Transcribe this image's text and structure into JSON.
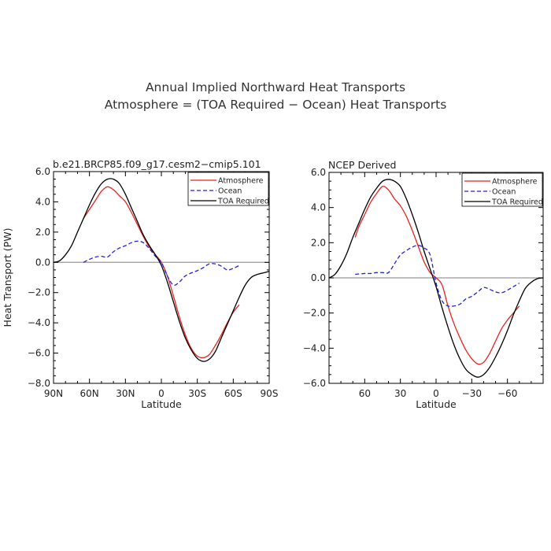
{
  "figure": {
    "title_line1": "Annual Implied Northward Heat Transports",
    "title_line2": "Atmosphere = (TOA Required − Ocean) Heat Transports"
  },
  "chart_data": [
    {
      "type": "line",
      "title": "b.e21.BRCP85.f09_g17.cesm2−cmip5.101",
      "xlabel": "Latitude",
      "ylabel": "Heat Transport (PW)",
      "xlim": [
        90,
        -90
      ],
      "ylim": [
        -8,
        6
      ],
      "xticks": [
        90,
        60,
        30,
        0,
        -30,
        -60,
        -90
      ],
      "xtick_labels": [
        "90N",
        "60N",
        "30N",
        "0",
        "30S",
        "60S",
        "90S"
      ],
      "yticks": [
        6,
        4,
        2,
        0,
        -2,
        -4,
        -6,
        -8
      ],
      "ytick_labels": [
        "6.0",
        "4.0",
        "2.0",
        "0.0",
        "−2.0",
        "−4.0",
        "−6.0",
        "−8.0"
      ],
      "zero_line": true,
      "legend": {
        "position": "top-right",
        "entries": [
          "Atmosphere",
          "Ocean",
          "TOA Required"
        ]
      },
      "series": [
        {
          "name": "Atmosphere",
          "color": "#e8231f",
          "dash": "solid",
          "x": [
            65,
            60,
            55,
            50,
            45,
            40,
            35,
            30,
            25,
            20,
            15,
            10,
            5,
            0,
            -5,
            -10,
            -15,
            -20,
            -25,
            -30,
            -35,
            -40,
            -45,
            -50,
            -55,
            -60,
            -65
          ],
          "y": [
            2.9,
            3.5,
            4.1,
            4.7,
            5.0,
            4.8,
            4.4,
            4.0,
            3.3,
            2.5,
            1.7,
            1.0,
            0.5,
            0.0,
            -0.9,
            -2.2,
            -3.6,
            -4.8,
            -5.7,
            -6.2,
            -6.3,
            -6.1,
            -5.5,
            -4.8,
            -4.0,
            -3.3,
            -2.8
          ]
        },
        {
          "name": "Ocean",
          "color": "#2323d8",
          "dash": "dashed",
          "x": [
            65,
            60,
            55,
            50,
            45,
            40,
            35,
            30,
            25,
            20,
            15,
            10,
            5,
            0,
            -5,
            -10,
            -15,
            -20,
            -25,
            -30,
            -35,
            -40,
            -45,
            -50,
            -55,
            -60,
            -65
          ],
          "y": [
            0.0,
            0.2,
            0.35,
            0.4,
            0.35,
            0.7,
            0.95,
            1.1,
            1.3,
            1.4,
            1.3,
            0.9,
            0.4,
            0.0,
            -0.9,
            -1.5,
            -1.3,
            -0.9,
            -0.7,
            -0.55,
            -0.35,
            -0.1,
            -0.1,
            -0.25,
            -0.5,
            -0.4,
            -0.2
          ]
        },
        {
          "name": "TOA Required",
          "color": "#000000",
          "dash": "solid",
          "x": [
            90,
            85,
            80,
            75,
            70,
            65,
            60,
            55,
            50,
            45,
            40,
            35,
            30,
            25,
            20,
            15,
            10,
            5,
            0,
            -5,
            -10,
            -15,
            -20,
            -25,
            -30,
            -35,
            -40,
            -45,
            -50,
            -55,
            -60,
            -65,
            -70,
            -75,
            -80,
            -85,
            -90
          ],
          "y": [
            0.0,
            0.1,
            0.5,
            1.1,
            2.0,
            2.9,
            3.8,
            4.6,
            5.2,
            5.5,
            5.5,
            5.2,
            4.5,
            3.6,
            2.7,
            1.8,
            1.1,
            0.5,
            -0.2,
            -1.3,
            -2.6,
            -3.9,
            -5.0,
            -5.8,
            -6.35,
            -6.55,
            -6.4,
            -5.9,
            -5.0,
            -4.1,
            -3.2,
            -2.3,
            -1.5,
            -1.0,
            -0.8,
            -0.7,
            -0.6
          ]
        }
      ]
    },
    {
      "type": "line",
      "title": "NCEP Derived",
      "xlabel": "Latitude",
      "ylabel": "",
      "xlim": [
        90,
        -90
      ],
      "ylim": [
        -6,
        6
      ],
      "xticks": [
        60,
        30,
        0,
        -30,
        -60
      ],
      "xtick_labels": [
        "60",
        "30",
        "0",
        "−30",
        "−60"
      ],
      "yticks": [
        6,
        4,
        2,
        0,
        -2,
        -4,
        -6
      ],
      "ytick_labels": [
        "6.0",
        "4.0",
        "2.0",
        "0.0",
        "−2.0",
        "−4.0",
        "−6.0"
      ],
      "zero_line": true,
      "legend": {
        "position": "top-right",
        "entries": [
          "Atmosphere",
          "Ocean",
          "TOA Required"
        ]
      },
      "series": [
        {
          "name": "Atmosphere",
          "color": "#e8231f",
          "dash": "solid",
          "x": [
            68,
            65,
            60,
            55,
            50,
            45,
            40,
            35,
            30,
            25,
            20,
            15,
            10,
            5,
            0,
            -5,
            -10,
            -15,
            -20,
            -25,
            -30,
            -35,
            -40,
            -45,
            -50,
            -55,
            -60,
            -65,
            -70
          ],
          "y": [
            2.3,
            2.9,
            3.6,
            4.3,
            4.8,
            5.2,
            5.0,
            4.5,
            4.1,
            3.5,
            2.7,
            1.8,
            0.9,
            0.3,
            0.0,
            -0.4,
            -1.6,
            -2.6,
            -3.4,
            -4.1,
            -4.6,
            -4.9,
            -4.8,
            -4.3,
            -3.6,
            -2.9,
            -2.4,
            -2.0,
            -1.6
          ]
        },
        {
          "name": "Ocean",
          "color": "#2323d8",
          "dash": "dashed",
          "x": [
            68,
            60,
            55,
            50,
            45,
            40,
            35,
            30,
            25,
            20,
            15,
            10,
            5,
            0,
            -5,
            -10,
            -15,
            -20,
            -25,
            -30,
            -35,
            -40,
            -45,
            -50,
            -55,
            -60,
            -65,
            -70
          ],
          "y": [
            0.2,
            0.25,
            0.25,
            0.3,
            0.3,
            0.3,
            0.8,
            1.3,
            1.55,
            1.75,
            1.85,
            1.7,
            1.3,
            -0.3,
            -1.3,
            -1.6,
            -1.6,
            -1.5,
            -1.2,
            -1.05,
            -0.8,
            -0.55,
            -0.65,
            -0.8,
            -0.85,
            -0.7,
            -0.5,
            -0.3
          ]
        },
        {
          "name": "TOA Required",
          "color": "#000000",
          "dash": "solid",
          "x": [
            90,
            85,
            80,
            75,
            70,
            65,
            60,
            55,
            50,
            45,
            40,
            35,
            30,
            25,
            20,
            15,
            10,
            5,
            0,
            -5,
            -10,
            -15,
            -20,
            -25,
            -30,
            -35,
            -40,
            -45,
            -50,
            -55,
            -60,
            -65,
            -70,
            -75,
            -80,
            -85,
            -90
          ],
          "y": [
            0.0,
            0.2,
            0.7,
            1.4,
            2.3,
            3.1,
            3.9,
            4.6,
            5.1,
            5.5,
            5.6,
            5.5,
            5.2,
            4.5,
            3.6,
            2.6,
            1.5,
            0.5,
            -0.5,
            -1.7,
            -2.8,
            -3.8,
            -4.6,
            -5.2,
            -5.5,
            -5.65,
            -5.5,
            -5.1,
            -4.5,
            -3.8,
            -3.0,
            -2.1,
            -1.3,
            -0.6,
            -0.25,
            -0.05,
            0.0
          ]
        }
      ]
    }
  ]
}
